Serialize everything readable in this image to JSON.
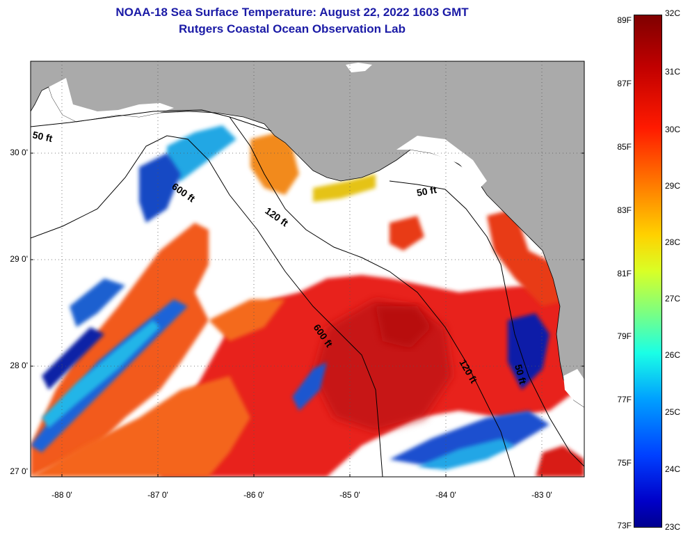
{
  "header": {
    "title": "NOAA-18 Sea Surface Temperature:  August 22, 2022 1603 GMT",
    "subtitle": "Rutgers Coastal Ocean Observation Lab"
  },
  "axes": {
    "latitude_labels": [
      "30 0'",
      "29 0'",
      "28 0'",
      "27 0'"
    ],
    "longitude_labels": [
      "-88 0'",
      "-87 0'",
      "-86 0'",
      "-85 0'",
      "-84 0'",
      "-83 0'"
    ]
  },
  "isobaths": {
    "label_50": "50 ft",
    "label_120": "120 ft",
    "label_600": "600 ft"
  },
  "colorbar": {
    "fahrenheit_labels": [
      "89F",
      "87F",
      "85F",
      "83F",
      "81F",
      "79F",
      "77F",
      "75F",
      "73F"
    ],
    "celsius_labels": [
      "32C",
      "31C",
      "30C",
      "29C",
      "28C",
      "27C",
      "26C",
      "25C",
      "24C",
      "23C"
    ]
  },
  "colors": {
    "land": "#aaaaaa",
    "cloud": "#ffffff",
    "title": "#1a1aa6"
  }
}
